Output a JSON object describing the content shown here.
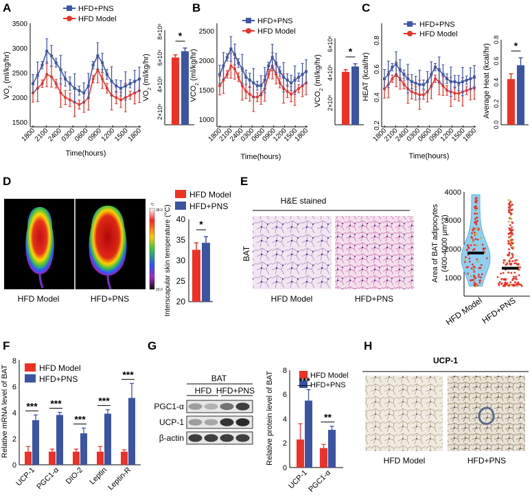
{
  "colors": {
    "model": "#e8322a",
    "pns": "#3f56a6",
    "model_bar": "#ee3124",
    "pns_bar": "#3b55a4"
  },
  "legend": {
    "pns": "HFD+PNS",
    "model": "HFD Model"
  },
  "time_ticks": [
    "1800",
    "2100",
    "2400",
    "0300",
    "0600",
    "0900",
    "1200",
    "1500",
    "1800"
  ],
  "panels": {
    "A": {
      "letter": "A",
      "ylabel_main": "VO2 (ml/kg/hr)",
      "ylabel_html": "VO<tspan baseline-shift='sub' font-size='7'>2</tspan> (ml/kg/hr)",
      "yticks": [
        "3500",
        "3000",
        "2500",
        "2000",
        "1500"
      ],
      "xlabel": "Time(hours)",
      "bar_ylabel": "VO2",
      "bar_ylabel_html": "VO<tspan baseline-shift='sub' font-size='7'>2</tspan> (ml/kg/hr)",
      "bar_yticks": [
        "2×10⁶",
        "4×10⁶",
        "6×10⁶",
        "8×10⁶"
      ],
      "sig": "*"
    },
    "B": {
      "letter": "B",
      "ylabel_html": "VCO<tspan baseline-shift='sub' font-size='7'>2</tspan> (ml/kg/hr)",
      "yticks": [
        "2500",
        "2000",
        "1500",
        "1000"
      ],
      "xlabel": "Time(hours)",
      "bar_ylabel_html": "VCO<tspan baseline-shift='sub' font-size='7'>2</tspan> (ml/kg/hr)",
      "bar_yticks": [
        "2×10⁶",
        "4×10⁶",
        "6×10⁶"
      ],
      "sig": "*"
    },
    "C": {
      "letter": "C",
      "ylabel": "HEAT (kcal/hr)",
      "yticks": [
        "0.8",
        "0.6",
        "0.4",
        "0.2"
      ],
      "xlabel": "Time(hours)",
      "bar_ylabel": "Average Heat (kcal/hr)",
      "bar_yticks": [
        "0.0",
        "0.2",
        "0.4",
        "0.6",
        "0.8"
      ],
      "sig": "*"
    },
    "D": {
      "letter": "D",
      "img1_label": "HFD Model",
      "img2_label": "HFD+PNS",
      "scale_top": "38.0",
      "scale_bottom": "20.0",
      "scale_unit": "°C",
      "ylabel": "Interscapular skin temperature (°C)",
      "yticks": [
        "20",
        "25",
        "30",
        "35",
        "40"
      ],
      "sig": "*"
    },
    "E": {
      "letter": "E",
      "stain_title": "H&E stained",
      "tissue": "BAT",
      "img1_label": "HFD Model",
      "img2_label": "HFD+PNS",
      "ylabel1": "Area of BAT adipocytes",
      "ylabel2": "(400-4000 μm^2)",
      "yticks": [
        "1000",
        "2000",
        "3000",
        "4000"
      ],
      "xcats": [
        "HFD Model",
        "HFD+PNS"
      ]
    },
    "F": {
      "letter": "F",
      "ylabel": "Relative mRNA level of BAT",
      "yticks": [
        "0",
        "2",
        "4",
        "6",
        "8"
      ],
      "sig": "***"
    },
    "G": {
      "letter": "G",
      "blot_title": "BAT",
      "group1": "HFD",
      "group2": "HFD+PNS",
      "rows": [
        "PGC1-α",
        "UCP-1",
        "β-actin"
      ],
      "ylabel": "Relative protein level of BAT",
      "yticks": [
        "0",
        "2",
        "4",
        "6",
        "8"
      ],
      "sigs": [
        "***",
        "**"
      ]
    },
    "H": {
      "letter": "H",
      "title": "UCP-1",
      "img1_label": "HFD Model",
      "img2_label": "HFD+PNS"
    }
  },
  "chart_data": [
    {
      "panel": "A",
      "type": "line",
      "title": "",
      "xlabel": "Time(hours)",
      "ylabel": "VO2 (ml/kg/hr)",
      "ylim": [
        1300,
        3500
      ],
      "series": [
        {
          "name": "HFD+PNS",
          "values": [
            2200,
            2380,
            2600,
            2900,
            2800,
            2650,
            2500,
            2300,
            2200,
            2100,
            2050,
            2000,
            2150,
            2600,
            2800,
            2650,
            2400,
            2250,
            2150,
            2100,
            2150,
            2200,
            2250,
            2300
          ]
        },
        {
          "name": "HFD Model",
          "values": [
            2000,
            2100,
            2200,
            2400,
            2350,
            2200,
            2000,
            1900,
            1850,
            1800,
            1750,
            1800,
            1900,
            2300,
            2500,
            2300,
            2100,
            1950,
            1900,
            1850,
            1900,
            1950,
            2000,
            2050
          ]
        }
      ]
    },
    {
      "panel": "A",
      "type": "bar",
      "ylabel": "VO2 (ml/kg/hr)",
      "categories": [
        "HFD Model",
        "HFD+PNS"
      ],
      "values": [
        6400000.0,
        7000000.0
      ],
      "errors": [
        250000.0,
        300000.0
      ],
      "ylim": [
        0,
        9000000.0
      ],
      "annotation": "*"
    },
    {
      "panel": "B",
      "type": "line",
      "xlabel": "Time(hours)",
      "ylabel": "VCO2 (ml/kg/hr)",
      "ylim": [
        900,
        2700
      ],
      "series": [
        {
          "name": "HFD+PNS",
          "values": [
            1800,
            1950,
            2100,
            2250,
            2150,
            2000,
            1900,
            1750,
            1700,
            1650,
            1600,
            1600,
            1700,
            1950,
            2100,
            2000,
            1850,
            1750,
            1700,
            1650,
            1700,
            1750,
            1800,
            1850
          ]
        },
        {
          "name": "HFD Model",
          "values": [
            1600,
            1700,
            1800,
            1950,
            1900,
            1750,
            1600,
            1500,
            1450,
            1400,
            1400,
            1450,
            1550,
            1800,
            1950,
            1800,
            1650,
            1550,
            1500,
            1450,
            1500,
            1550,
            1600,
            1650
          ]
        }
      ]
    },
    {
      "panel": "B",
      "type": "bar",
      "ylabel": "VCO2 (ml/kg/hr)",
      "categories": [
        "HFD Model",
        "HFD+PNS"
      ],
      "values": [
        4900000.0,
        5400000.0
      ],
      "errors": [
        200000.0,
        250000.0
      ],
      "ylim": [
        0,
        8000000.0
      ],
      "annotation": "*"
    },
    {
      "panel": "C",
      "type": "line",
      "xlabel": "Time(hours)",
      "ylabel": "HEAT (kcal/hr)",
      "ylim": [
        0.2,
        0.9
      ],
      "series": [
        {
          "name": "HFD+PNS",
          "values": [
            0.52,
            0.55,
            0.6,
            0.62,
            0.58,
            0.55,
            0.52,
            0.5,
            0.49,
            0.48,
            0.48,
            0.5,
            0.55,
            0.6,
            0.58,
            0.55,
            0.52,
            0.5,
            0.5,
            0.49,
            0.5,
            0.51,
            0.52,
            0.53
          ]
        },
        {
          "name": "HFD Model",
          "values": [
            0.45,
            0.48,
            0.52,
            0.55,
            0.52,
            0.48,
            0.45,
            0.43,
            0.42,
            0.41,
            0.41,
            0.43,
            0.47,
            0.52,
            0.5,
            0.47,
            0.44,
            0.43,
            0.42,
            0.42,
            0.43,
            0.44,
            0.45,
            0.46
          ]
        }
      ]
    },
    {
      "panel": "C",
      "type": "bar",
      "ylabel": "Average Heat (kcal/hr)",
      "categories": [
        "HFD Model",
        "HFD+PNS"
      ],
      "values": [
        0.43,
        0.56
      ],
      "errors": [
        0.05,
        0.07
      ],
      "ylim": [
        0,
        0.8
      ],
      "annotation": "*"
    },
    {
      "panel": "D",
      "type": "bar",
      "ylabel": "Interscapular skin temperature (°C)",
      "categories": [
        "HFD Model",
        "HFD+PNS"
      ],
      "values": [
        32.6,
        34.3
      ],
      "errors": [
        1.7,
        1.5
      ],
      "ylim": [
        20,
        40
      ],
      "annotation": "*"
    },
    {
      "panel": "E",
      "type": "scatter",
      "ylabel": "Area of BAT adipocytes (400-4000 μm^2)",
      "categories": [
        "HFD Model",
        "HFD+PNS"
      ],
      "medians": [
        1700,
        1100
      ],
      "ylim": [
        0,
        4000
      ]
    },
    {
      "panel": "F",
      "type": "bar",
      "ylabel": "Relative mRNA level of BAT",
      "categories": [
        "UCP-1",
        "PGC1-α",
        "DIO-2",
        "Leptin",
        "Leptin-R"
      ],
      "series": [
        {
          "name": "HFD Model",
          "values": [
            1.0,
            1.0,
            1.0,
            1.0,
            1.0
          ],
          "errors": [
            0.4,
            0.2,
            0.2,
            0.4,
            0.15
          ]
        },
        {
          "name": "HFD+PNS",
          "values": [
            3.4,
            3.8,
            2.4,
            3.9,
            5.1
          ],
          "errors": [
            0.4,
            0.2,
            0.4,
            0.3,
            1.1
          ]
        }
      ],
      "ylim": [
        0,
        8
      ],
      "annotations": [
        "***",
        "***",
        "***",
        "***",
        "***"
      ]
    },
    {
      "panel": "G",
      "type": "bar",
      "ylabel": "Relative protein level of BAT",
      "categories": [
        "UCP-1",
        "PGC1-α"
      ],
      "series": [
        {
          "name": "HFD Model",
          "values": [
            2.3,
            1.6
          ],
          "errors": [
            1.3,
            0.3
          ]
        },
        {
          "name": "HFD+PNS",
          "values": [
            5.5,
            3.1
          ],
          "errors": [
            0.9,
            0.3
          ]
        }
      ],
      "ylim": [
        0,
        8
      ],
      "annotations": [
        "***",
        "**"
      ]
    }
  ]
}
